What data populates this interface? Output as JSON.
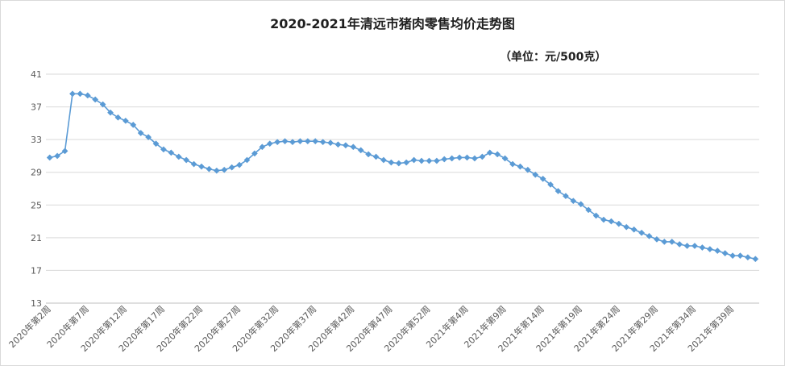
{
  "chart_data": {
    "type": "line",
    "title": "2020-2021年清远市猪肉零售均价走势图",
    "unit_note": "（单位：元/500克）",
    "xlabel": "",
    "ylabel": "",
    "ylim": [
      13,
      41
    ],
    "yticks": [
      13,
      17,
      21,
      25,
      29,
      33,
      37,
      41
    ],
    "grid": "horizontal",
    "legend": "none",
    "line_color": "#5b9bd5",
    "marker": "diamond",
    "x_tick_labels": [
      "2020年第2周",
      "2020年第7周",
      "2020年第12周",
      "2020年第17周",
      "2020年第22周",
      "2020年第27周",
      "2020年第32周",
      "2020年第37周",
      "2020年第42周",
      "2020年第47周",
      "2020年第52周",
      "2021年第4周",
      "2021年第9周",
      "2021年第14周",
      "2021年第19周",
      "2021年第24周",
      "2021年第29周",
      "2021年第34周",
      "2021年第39周"
    ],
    "x_tick_every": 5,
    "series": [
      {
        "values": [
          30.8,
          31.0,
          31.6,
          38.6,
          38.6,
          38.4,
          37.9,
          37.3,
          36.3,
          35.7,
          35.3,
          34.8,
          33.8,
          33.3,
          32.5,
          31.8,
          31.4,
          30.9,
          30.5,
          30.0,
          29.7,
          29.4,
          29.2,
          29.3,
          29.6,
          29.9,
          30.5,
          31.3,
          32.1,
          32.5,
          32.7,
          32.8,
          32.7,
          32.8,
          32.8,
          32.8,
          32.7,
          32.6,
          32.4,
          32.3,
          32.1,
          31.7,
          31.2,
          30.9,
          30.5,
          30.2,
          30.1,
          30.2,
          30.5,
          30.4,
          30.4,
          30.4,
          30.6,
          30.7,
          30.8,
          30.8,
          30.7,
          30.9,
          31.4,
          31.2,
          30.7,
          30.0,
          29.7,
          29.3,
          28.7,
          28.2,
          27.5,
          26.7,
          26.1,
          25.5,
          25.1,
          24.4,
          23.7,
          23.2,
          23.0,
          22.7,
          22.3,
          22.0,
          21.6,
          21.2,
          20.8,
          20.5,
          20.5,
          20.2,
          20.0,
          20.0,
          19.8,
          19.6,
          19.4,
          19.1,
          18.8,
          18.8,
          18.6,
          18.4
        ]
      }
    ]
  }
}
